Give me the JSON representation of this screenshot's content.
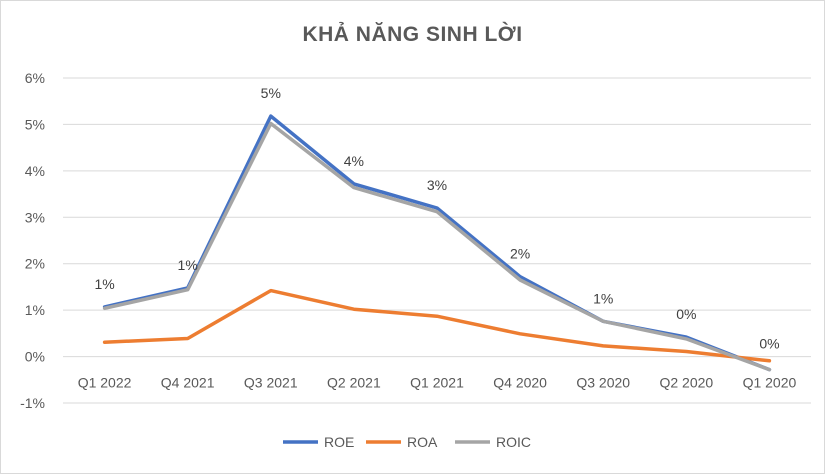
{
  "chart_data": {
    "type": "line",
    "title": "KHẢ NĂNG SINH LỜI",
    "categories": [
      "Q1 2022",
      "Q4 2021",
      "Q3 2021",
      "Q2 2021",
      "Q1 2021",
      "Q4 2020",
      "Q3 2020",
      "Q2 2020",
      "Q1 2020"
    ],
    "ylim": [
      -1,
      6
    ],
    "yticks": [
      -1,
      0,
      1,
      2,
      3,
      4,
      5,
      6
    ],
    "ytick_labels": [
      "-1%",
      "0%",
      "1%",
      "2%",
      "3%",
      "4%",
      "5%",
      "6%"
    ],
    "grid": true,
    "legend_position": "bottom",
    "series": [
      {
        "name": "ROE",
        "color": "#4472c4",
        "values": [
          1.07,
          1.48,
          5.18,
          3.72,
          3.2,
          1.72,
          0.76,
          0.42,
          -0.28
        ]
      },
      {
        "name": "ROA",
        "color": "#ed7d31",
        "values": [
          0.31,
          0.39,
          1.42,
          1.02,
          0.87,
          0.49,
          0.23,
          0.11,
          -0.09
        ]
      },
      {
        "name": "ROIC",
        "color": "#a5a5a5",
        "values": [
          1.04,
          1.44,
          5.02,
          3.64,
          3.12,
          1.65,
          0.76,
          0.38,
          -0.28
        ]
      }
    ],
    "data_labels": [
      "1%",
      "1%",
      "5%",
      "4%",
      "3%",
      "2%",
      "1%",
      "0%",
      "0%"
    ]
  }
}
